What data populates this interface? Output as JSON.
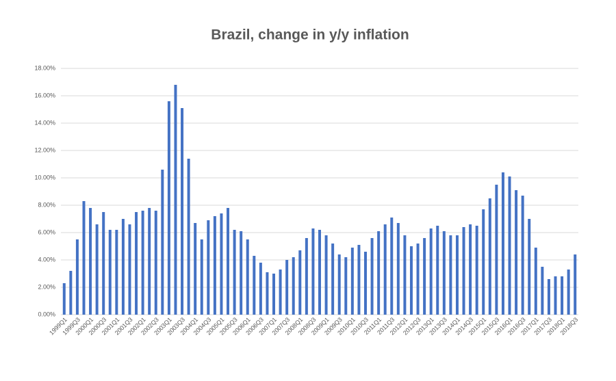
{
  "chart_data": {
    "type": "bar",
    "title": "Brazil, change in y/y inflation",
    "categories": [
      "1999Q1",
      null,
      "1999Q3",
      null,
      "2000Q1",
      null,
      "2000Q3",
      null,
      "2001Q1",
      null,
      "2001Q3",
      null,
      "2002Q1",
      null,
      "2002Q3",
      null,
      "2003Q1",
      null,
      "2003Q3",
      null,
      "2004Q1",
      null,
      "2004Q3",
      null,
      "2005Q1",
      null,
      "2005Q3",
      null,
      "2006Q1",
      null,
      "2006Q3",
      null,
      "2007Q1",
      null,
      "2007Q3",
      null,
      "2008Q1",
      null,
      "2008Q3",
      null,
      "2009Q1",
      null,
      "2009Q3",
      null,
      "2010Q1",
      null,
      "2010Q3",
      null,
      "2011Q1",
      null,
      "2011Q3",
      null,
      "2012Q1",
      null,
      "2012Q3",
      null,
      "2013Q1",
      null,
      "2013Q3",
      null,
      "2014Q1",
      null,
      "2014Q3",
      null,
      "2015Q1",
      null,
      "2015Q3",
      null,
      "2016Q1",
      null,
      "2016Q3",
      null,
      "2017Q1",
      null,
      "2017Q3",
      null,
      "2018Q1",
      null,
      "2018Q3"
    ],
    "values": [
      2.3,
      3.2,
      5.5,
      8.3,
      7.8,
      6.6,
      7.5,
      6.2,
      6.2,
      7.0,
      6.6,
      7.5,
      7.6,
      7.8,
      7.6,
      10.6,
      15.6,
      16.8,
      15.1,
      11.4,
      6.7,
      5.5,
      6.9,
      7.2,
      7.4,
      7.8,
      6.2,
      6.1,
      5.5,
      4.3,
      3.8,
      3.1,
      3.0,
      3.3,
      4.0,
      4.2,
      4.7,
      5.6,
      6.3,
      6.2,
      5.8,
      5.2,
      4.4,
      4.2,
      4.9,
      5.1,
      4.6,
      5.6,
      6.1,
      6.6,
      7.1,
      6.7,
      5.8,
      5.0,
      5.2,
      5.6,
      6.3,
      6.5,
      6.1,
      5.8,
      5.8,
      6.4,
      6.6,
      6.5,
      7.7,
      8.5,
      9.5,
      10.4,
      10.1,
      9.1,
      8.7,
      7.0,
      4.9,
      3.5,
      2.6,
      2.8,
      2.8,
      3.3,
      4.4
    ],
    "color": "#4472c4",
    "ylim": [
      0,
      18
    ],
    "yticks": [
      {
        "value": 0,
        "label": "0.00%"
      },
      {
        "value": 2,
        "label": "2.00%"
      },
      {
        "value": 4,
        "label": "4.00%"
      },
      {
        "value": 6,
        "label": "6.00%"
      },
      {
        "value": 8,
        "label": "8.00%"
      },
      {
        "value": 10,
        "label": "10.00%"
      },
      {
        "value": 12,
        "label": "12.00%"
      },
      {
        "value": 14,
        "label": "14.00%"
      },
      {
        "value": 16,
        "label": "16.00%"
      },
      {
        "value": 18,
        "label": "18.00%"
      }
    ],
    "grid": true
  }
}
